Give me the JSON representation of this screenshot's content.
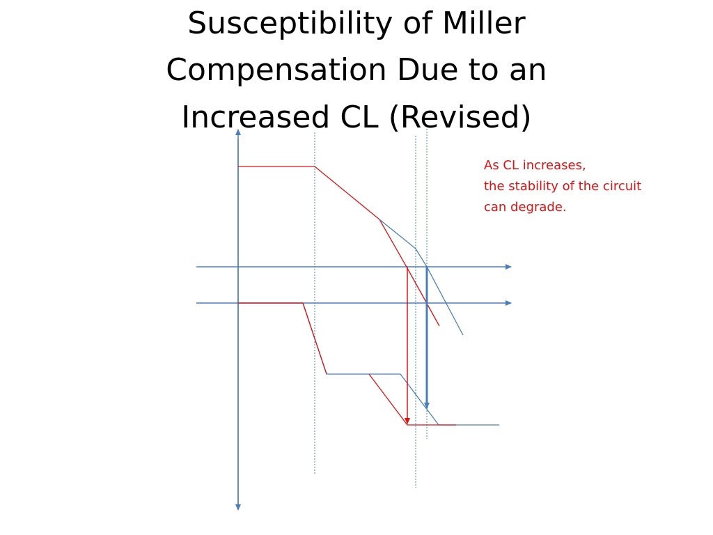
{
  "title": {
    "lines": [
      "Susceptibility of Miller",
      "Compensation Due to an",
      "Increased CL (Revised)"
    ]
  },
  "annotation": {
    "lines": [
      "As CL increases,",
      "the stability of the circuit",
      "can degrade."
    ]
  }
}
